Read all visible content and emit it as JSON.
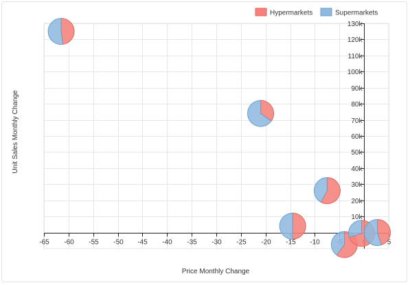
{
  "chart_data": {
    "type": "scatter-pie",
    "title": "",
    "xlabel": "Price Monthly Change",
    "ylabel": "Unit Sales Monthly Change",
    "xlim": [
      -65,
      5
    ],
    "ylim": [
      -10000,
      130000
    ],
    "x_ticks": [
      -65,
      -60,
      -55,
      -50,
      -45,
      -40,
      -35,
      -30,
      -25,
      -20,
      -15,
      -10,
      -5,
      0,
      5
    ],
    "x_tick_labels": [
      "-65",
      "-60",
      "-55",
      "-50",
      "-45",
      "-40",
      "-35",
      "-30",
      "-25",
      "-20",
      "-15",
      "-10",
      "-5",
      "0",
      "5"
    ],
    "y_ticks": [
      10000,
      20000,
      30000,
      40000,
      50000,
      60000,
      70000,
      80000,
      90000,
      100000,
      110000,
      120000,
      130000
    ],
    "y_tick_labels": [
      "10k",
      "20k",
      "30k",
      "40k",
      "50k",
      "60k",
      "70k",
      "80k",
      "90k",
      "100k",
      "110k",
      "120k",
      "130k"
    ],
    "series": [
      {
        "name": "Hypermarkets",
        "color": "#f4827a",
        "stroke": "#e7625a"
      },
      {
        "name": "Supermarkets",
        "color": "#8fbadf",
        "stroke": "#6a9fcc"
      }
    ],
    "points": [
      {
        "x": -61.5,
        "y": 125000,
        "shares": [
          0.48,
          0.52
        ]
      },
      {
        "x": -21.0,
        "y": 74000,
        "shares": [
          0.35,
          0.65
        ]
      },
      {
        "x": -7.5,
        "y": 26000,
        "shares": [
          0.58,
          0.42
        ]
      },
      {
        "x": -14.5,
        "y": 4000,
        "shares": [
          0.5,
          0.5
        ]
      },
      {
        "x": -4.0,
        "y": -7500,
        "shares": [
          0.6,
          0.4
        ]
      },
      {
        "x": -0.5,
        "y": -500,
        "shares": [
          0.7,
          0.3
        ]
      },
      {
        "x": 2.7,
        "y": 0,
        "shares": [
          0.45,
          0.55
        ]
      }
    ]
  },
  "legend": {
    "items": [
      {
        "label": "Hypermarkets"
      },
      {
        "label": "Supermarkets"
      }
    ]
  }
}
